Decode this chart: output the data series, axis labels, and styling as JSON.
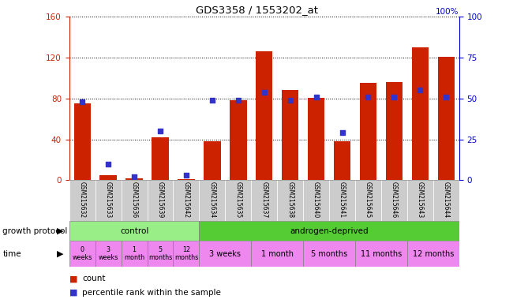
{
  "title": "GDS3358 / 1553202_at",
  "samples": [
    "GSM215632",
    "GSM215633",
    "GSM215636",
    "GSM215639",
    "GSM215642",
    "GSM215634",
    "GSM215635",
    "GSM215637",
    "GSM215638",
    "GSM215640",
    "GSM215641",
    "GSM215645",
    "GSM215646",
    "GSM215643",
    "GSM215644"
  ],
  "counts": [
    75,
    5,
    2,
    42,
    1,
    38,
    78,
    126,
    88,
    81,
    38,
    95,
    96,
    130,
    121
  ],
  "percentiles": [
    48,
    10,
    2,
    30,
    3,
    49,
    49,
    54,
    49,
    51,
    29,
    51,
    51,
    55,
    51
  ],
  "ylim_left": [
    0,
    160
  ],
  "ylim_right": [
    0,
    100
  ],
  "yticks_left": [
    0,
    40,
    80,
    120,
    160
  ],
  "yticks_right": [
    0,
    25,
    50,
    75,
    100
  ],
  "bar_color": "#cc2200",
  "dot_color": "#3333cc",
  "grid_color": "#000000",
  "control_color": "#99ee88",
  "androgen_color": "#55cc33",
  "time_pink": "#ee88ee",
  "sample_bg": "#cccccc",
  "title_color": "#000000",
  "left_axis_color": "#cc2200",
  "right_axis_color": "#0000cc",
  "time_labels_control": [
    "0\nweeks",
    "3\nweeks",
    "1\nmonth",
    "5\nmonths",
    "12\nmonths"
  ],
  "time_labels_androgen": [
    "3 weeks",
    "1 month",
    "5 months",
    "11 months",
    "12 months"
  ],
  "time_spans_androgen_start": [
    5,
    7,
    9,
    11,
    13
  ],
  "time_spans_androgen_end": [
    7,
    9,
    11,
    13,
    15
  ]
}
